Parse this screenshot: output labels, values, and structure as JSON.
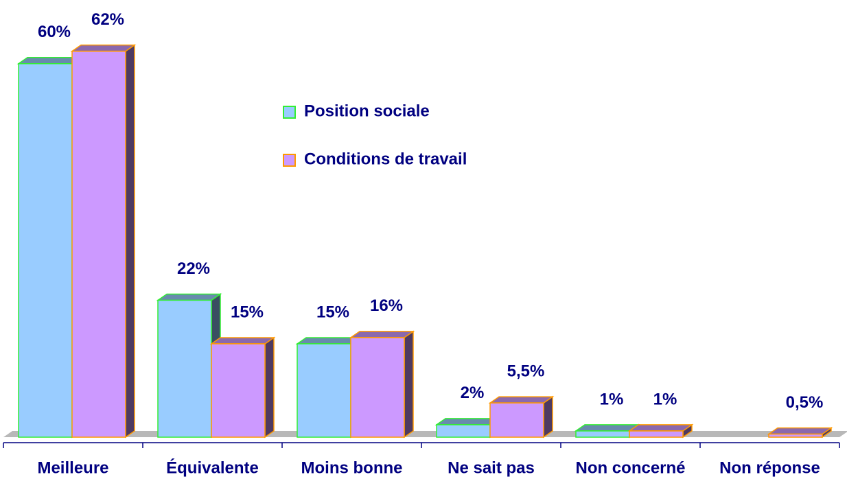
{
  "chart_data": {
    "type": "bar3d",
    "categories": [
      "Meilleure",
      "Équivalente",
      "Moins bonne",
      "Ne sait pas",
      "Non concerné",
      "Non réponse"
    ],
    "series": [
      {
        "name": "Position sociale",
        "color": "#99ccff",
        "edge": "#33ee33",
        "values": [
          60,
          22,
          15,
          2,
          1,
          null
        ],
        "value_labels": [
          "60%",
          "22%",
          "15%",
          "2%",
          "1%",
          null
        ]
      },
      {
        "name": "Conditions de travail",
        "color": "#cc99ff",
        "edge": "#ff9900",
        "values": [
          62,
          15,
          16,
          5.5,
          1,
          0.5
        ],
        "value_labels": [
          "62%",
          "15%",
          "16%",
          "5,5%",
          "1%",
          "0,5%"
        ]
      }
    ]
  }
}
